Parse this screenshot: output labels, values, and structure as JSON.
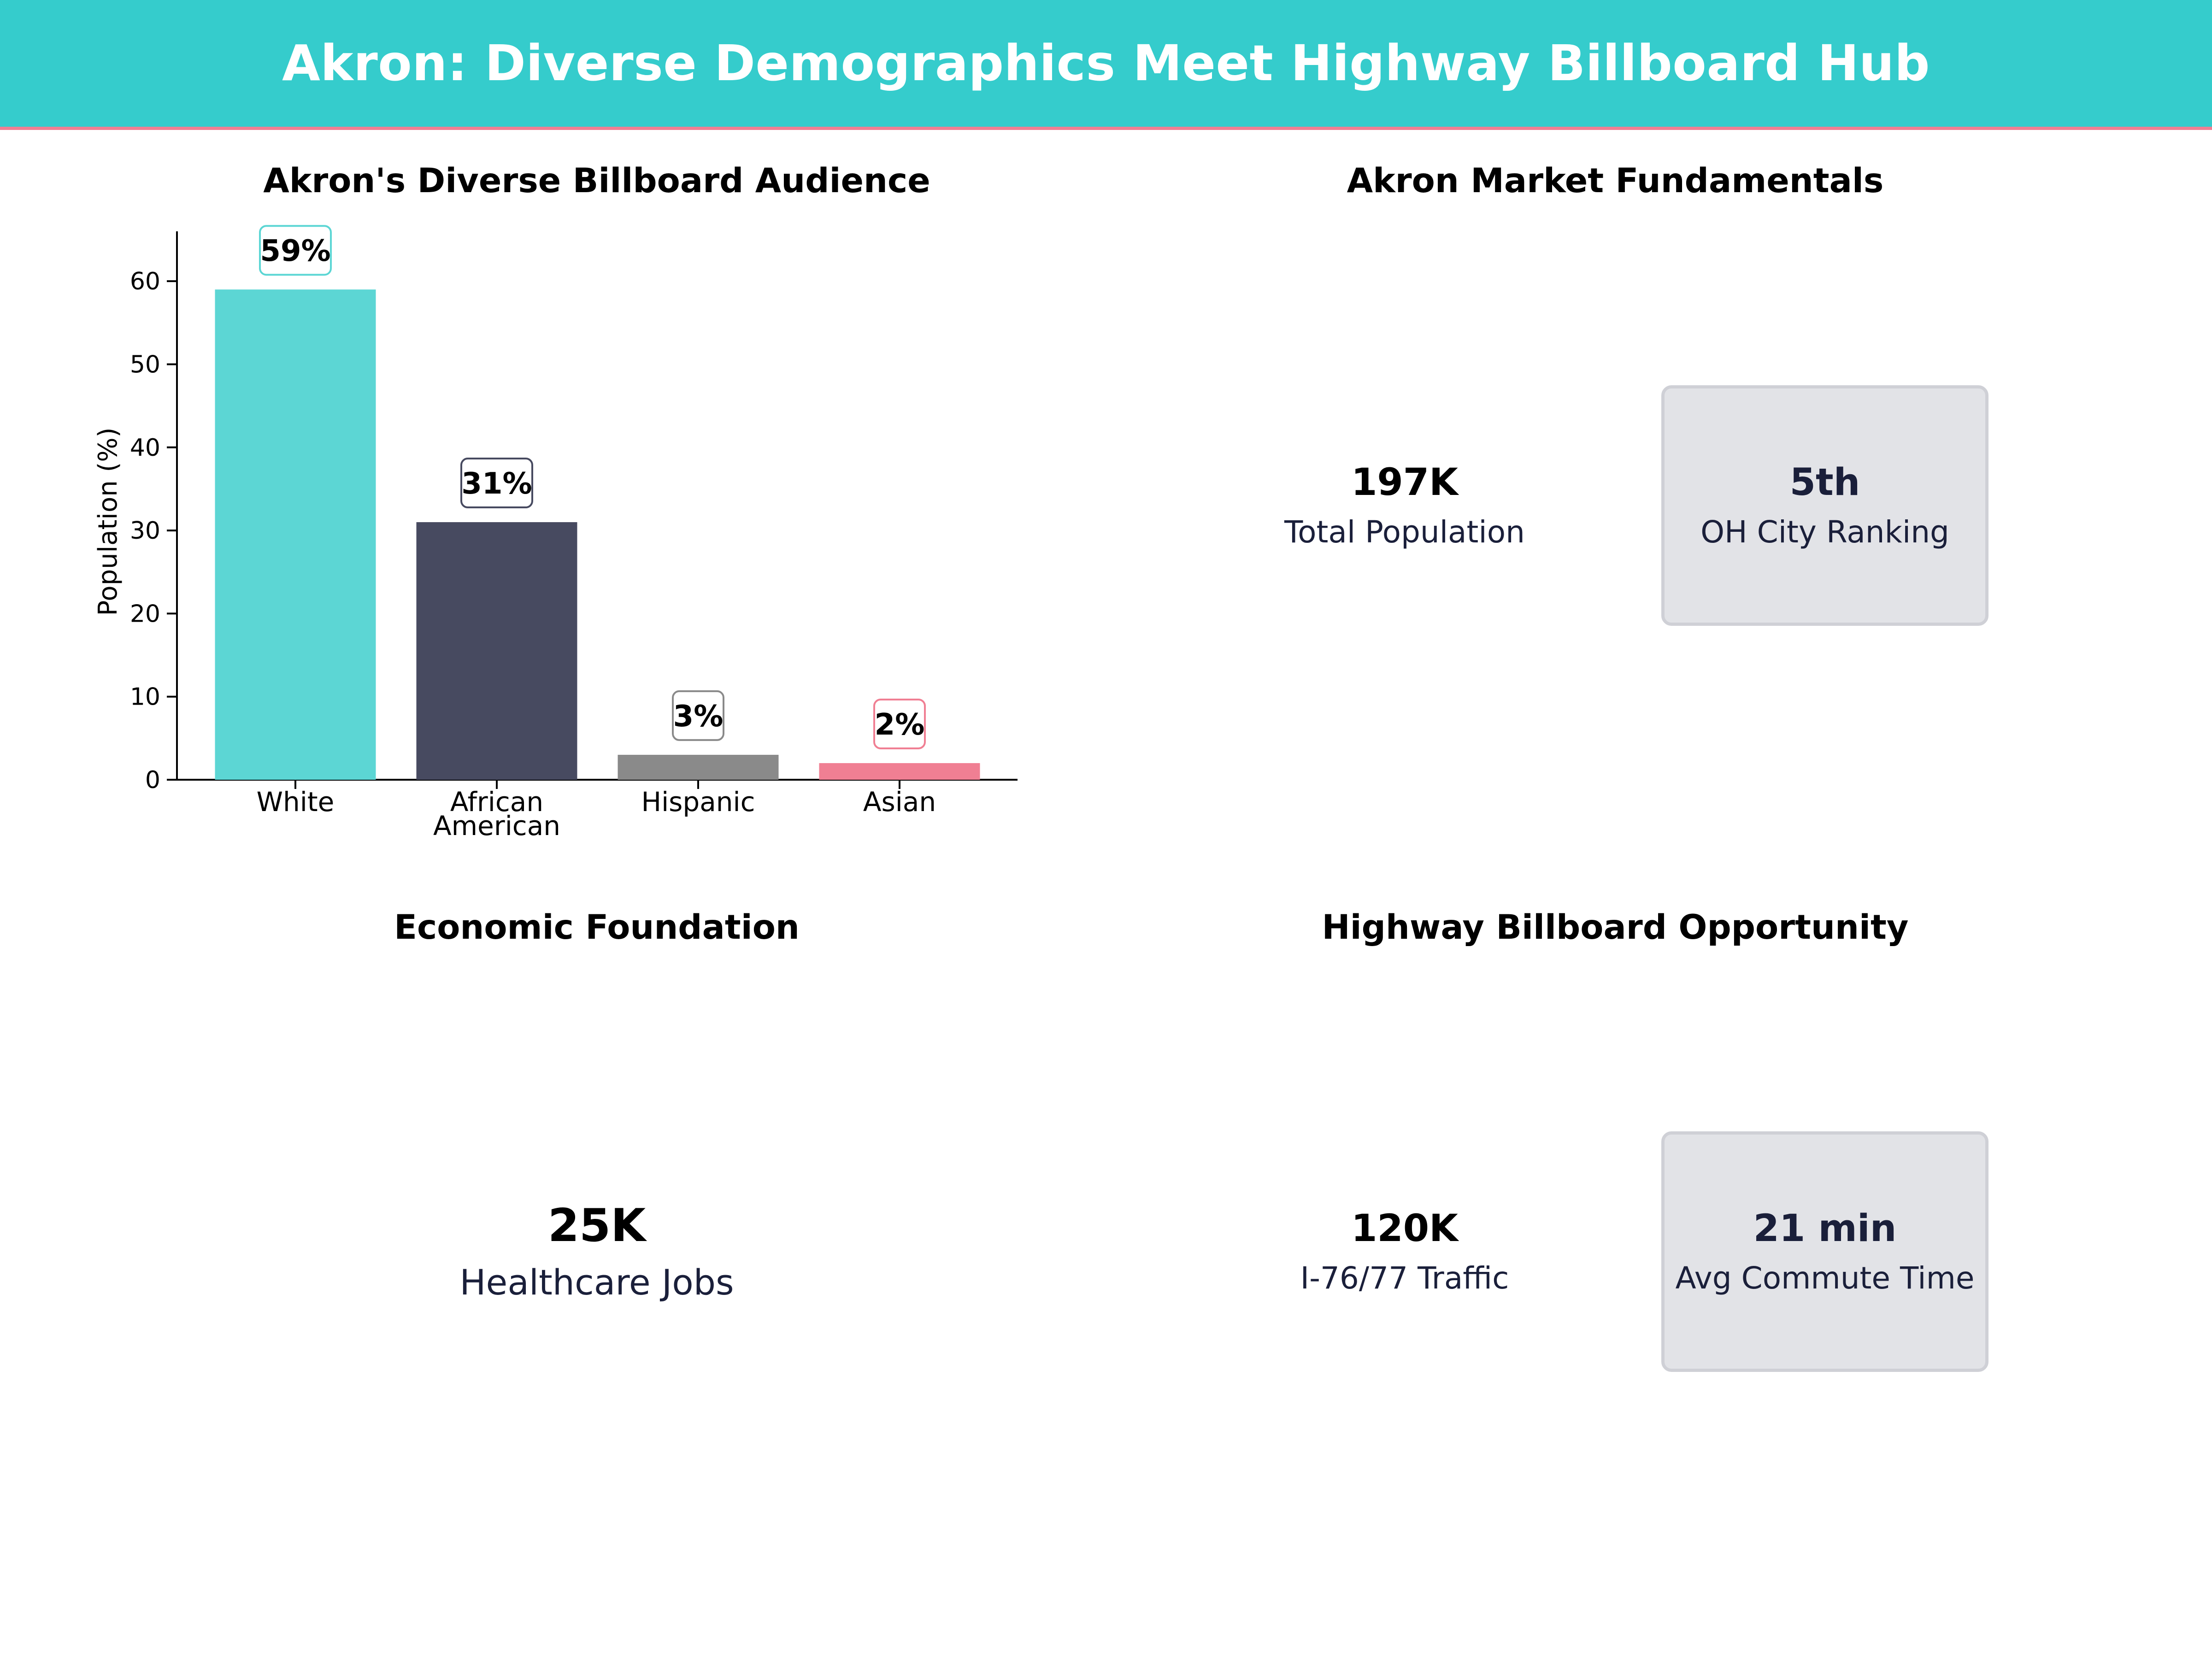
{
  "header": {
    "title": "Akron: Diverse Demographics Meet Highway Billboard Hub"
  },
  "panels": {
    "audience_title": "Akron's Diverse Billboard Audience",
    "fundamentals_title": "Akron Market Fundamentals",
    "economic_title": "Economic Foundation",
    "highway_title": "Highway Billboard Opportunity"
  },
  "chart_data": {
    "type": "bar",
    "title": "Akron's Diverse Billboard Audience",
    "xlabel": "",
    "ylabel": "Population (%)",
    "categories": [
      [
        "White"
      ],
      [
        "African",
        "American"
      ],
      [
        "Hispanic"
      ],
      [
        "Asian"
      ]
    ],
    "values": [
      59,
      31,
      3,
      2
    ],
    "data_labels": [
      "59%",
      "31%",
      "3%",
      "2%"
    ],
    "colors": [
      "#5cd6d4",
      "#474a60",
      "#8a8a8a",
      "#f07f93"
    ],
    "label_border_colors": [
      "#5cd6d4",
      "#474a60",
      "#8a8a8a",
      "#f07f93"
    ],
    "yticks": [
      0,
      10,
      20,
      30,
      40,
      50,
      60
    ],
    "ylim": [
      0,
      66
    ],
    "grid": false
  },
  "fundamentals": [
    {
      "value": "197K",
      "label": "Total Population",
      "style": "teal"
    },
    {
      "value": "5th",
      "label": "OH City Ranking",
      "style": "gray"
    }
  ],
  "economic": [
    {
      "value": "25K",
      "label": "Healthcare Jobs",
      "style": "teal"
    }
  ],
  "highway": [
    {
      "value": "120K",
      "label": "I-76/77 Traffic",
      "style": "teal"
    },
    {
      "value": "21 min",
      "label": "Avg Commute Time",
      "style": "gray"
    }
  ],
  "colors": {
    "accent": "#35cccc",
    "header_underline": "#f07f93",
    "navy": "#1a1f3a"
  }
}
